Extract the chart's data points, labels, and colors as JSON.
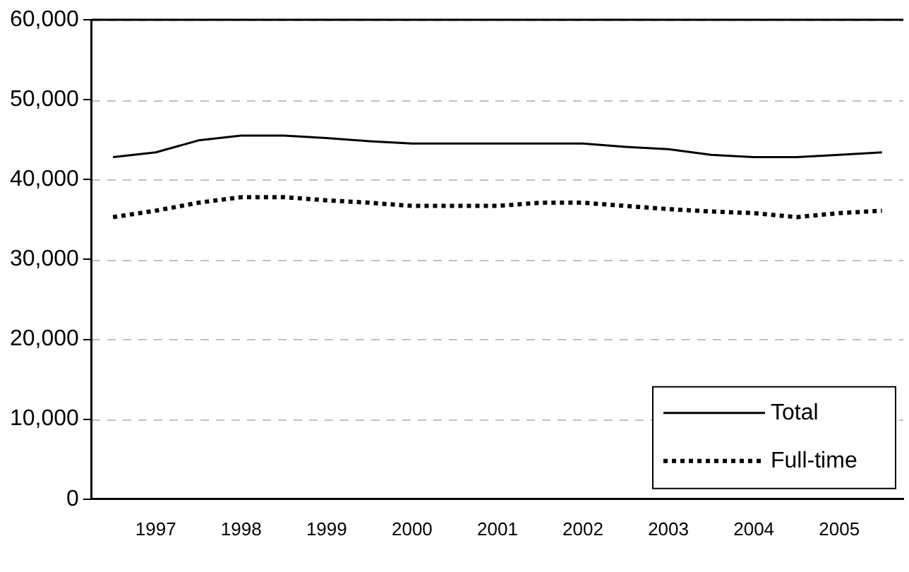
{
  "chart_data": {
    "type": "line",
    "categories": [
      null,
      "1997",
      null,
      "1998",
      null,
      "1999",
      null,
      "2000",
      null,
      "2001",
      null,
      "2002",
      null,
      "2003",
      null,
      "2004",
      null,
      "2005",
      null
    ],
    "series": [
      {
        "name": "Total",
        "color": "#000000",
        "line_style": "solid",
        "values": [
          42800,
          43400,
          44900,
          45500,
          45500,
          45200,
          44800,
          44500,
          44500,
          44500,
          44500,
          44500,
          44100,
          43800,
          43100,
          42800,
          42800,
          43100,
          43400
        ]
      },
      {
        "name": "Full-time",
        "color": "#000000",
        "line_style": "dotted",
        "values": [
          35300,
          36100,
          37100,
          37800,
          37800,
          37400,
          37100,
          36700,
          36700,
          36700,
          37100,
          37100,
          36700,
          36300,
          36000,
          35800,
          35300,
          35800,
          36100
        ]
      }
    ],
    "ylim": [
      0,
      60000
    ],
    "yticks": [
      0,
      {
        "value": 10000,
        "label": "10,000"
      },
      {
        "value": 20000,
        "label": "20,000"
      },
      {
        "value": 30000,
        "label": "30,000"
      },
      {
        "value": 40000,
        "label": "40,000"
      },
      {
        "value": 50000,
        "label": "50,000"
      },
      {
        "value": 60000,
        "label": "60,000"
      }
    ],
    "grid": "y",
    "legend": "bottom right",
    "marker": "none"
  }
}
